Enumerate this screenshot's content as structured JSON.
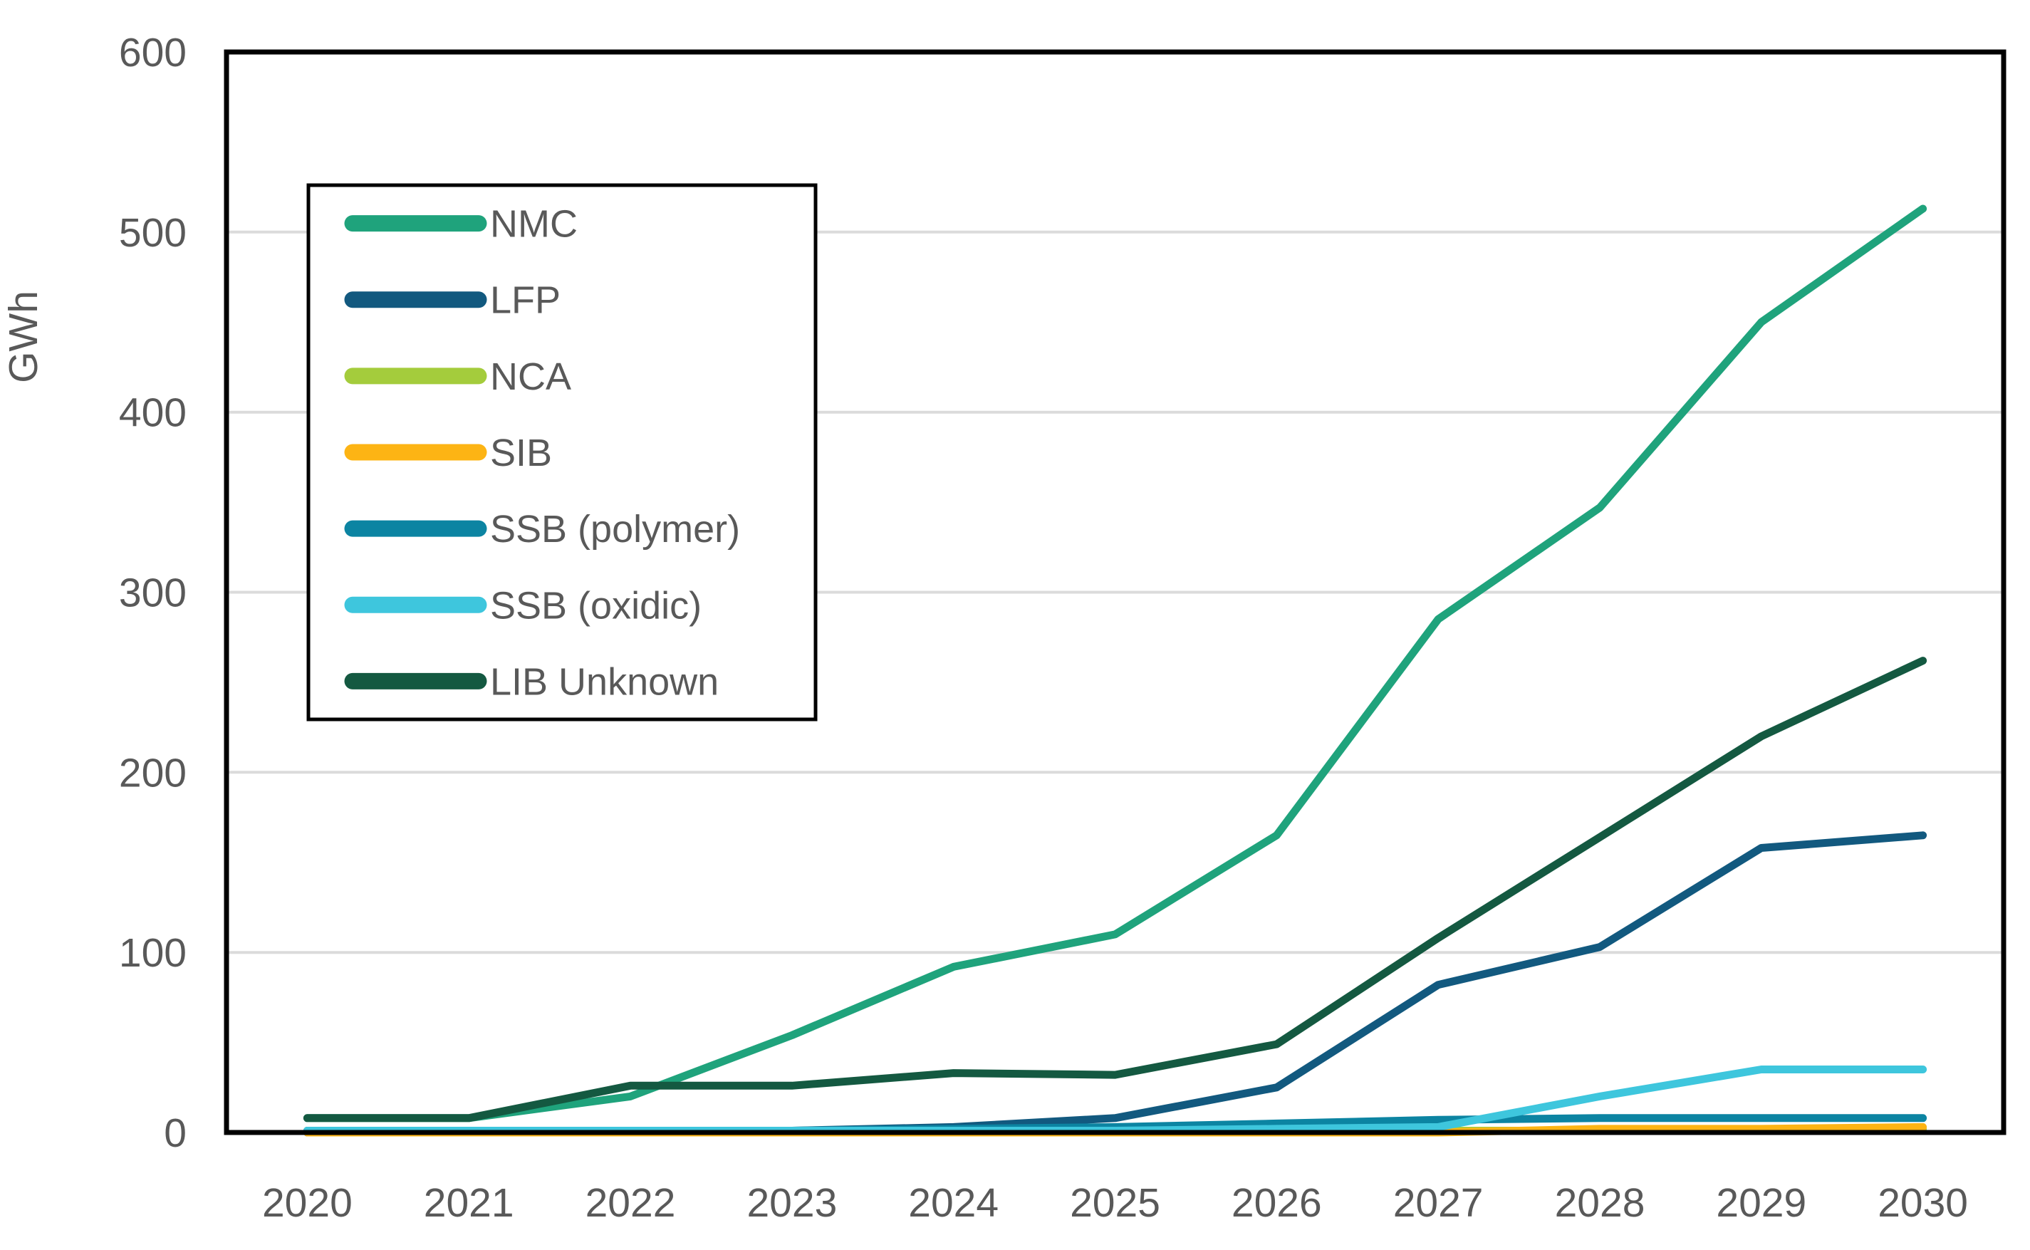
{
  "chart_data": {
    "type": "line",
    "title": "",
    "xlabel": "",
    "ylabel": "GWh",
    "categories": [
      "2020",
      "2021",
      "2022",
      "2023",
      "2024",
      "2025",
      "2026",
      "2027",
      "2028",
      "2029",
      "2030"
    ],
    "ylim": [
      0,
      600
    ],
    "ytick_step": 100,
    "ytick_labels": [
      "0",
      "100",
      "200",
      "300",
      "400",
      "500",
      "600"
    ],
    "grid": "horizontal",
    "grid_color": "#DBDBDB",
    "plot_border_color": "#000000",
    "tick_text_color": "#595959",
    "legend_position": "upper-left-inside",
    "series": [
      {
        "name": "NMC",
        "color": "#1FA37C",
        "values": [
          8,
          8,
          20,
          54,
          92,
          110,
          165,
          285,
          347,
          450,
          513
        ]
      },
      {
        "name": "LFP",
        "color": "#12597F",
        "values": [
          0,
          0,
          0,
          1,
          3,
          8,
          25,
          82,
          103,
          158,
          165
        ]
      },
      {
        "name": "NCA",
        "color": "#A4CC3C",
        "values": [
          1,
          1,
          1,
          1,
          1,
          1,
          1,
          1,
          1,
          1,
          2
        ]
      },
      {
        "name": "SIB",
        "color": "#FDB414",
        "values": [
          0,
          0,
          0,
          0,
          0,
          0,
          0,
          0,
          2,
          2,
          3
        ]
      },
      {
        "name": "SSB (polymer)",
        "color": "#0C84A2",
        "values": [
          1,
          1,
          1,
          1,
          2,
          3,
          5,
          7,
          8,
          8,
          8
        ]
      },
      {
        "name": "SSB (oxidic)",
        "color": "#3EC6DD",
        "values": [
          1,
          1,
          1,
          1,
          1,
          1,
          2,
          3,
          20,
          35,
          35
        ]
      },
      {
        "name": "LIB Unknown",
        "color": "#145941",
        "values": [
          8,
          8,
          26,
          26,
          33,
          32,
          49,
          108,
          164,
          220,
          262
        ]
      }
    ]
  }
}
